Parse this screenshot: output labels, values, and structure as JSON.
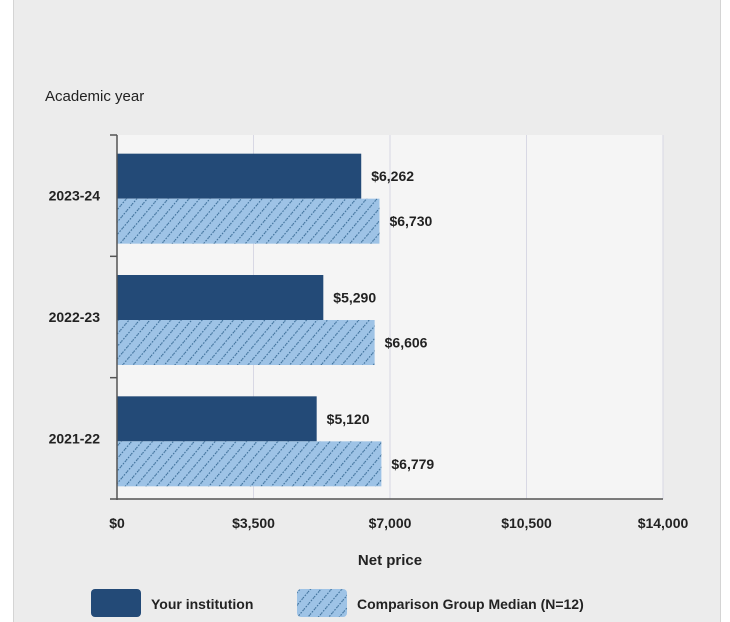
{
  "chart_data": {
    "type": "bar",
    "orientation": "horizontal",
    "title": "",
    "ylabel": "Academic year",
    "xlabel": "Net price",
    "categories": [
      "2023-24",
      "2022-23",
      "2021-22"
    ],
    "series": [
      {
        "name": "Your institution",
        "values": [
          6262,
          5290,
          5120
        ],
        "labels": [
          "$6,262",
          "$5,290",
          "$5,120"
        ],
        "color": "#234a77",
        "pattern": "solid"
      },
      {
        "name": "Comparison Group Median (N=12)",
        "values": [
          6730,
          6606,
          6779
        ],
        "labels": [
          "$6,730",
          "$6,606",
          "$6,779"
        ],
        "color": "#9ec3e6",
        "pattern": "hatched"
      }
    ],
    "xlim": [
      0,
      14000
    ],
    "x_ticks": [
      0,
      3500,
      7000,
      10500,
      14000
    ],
    "x_tick_labels": [
      "$0",
      "$3,500",
      "$7,000",
      "$10,500",
      "$14,000"
    ],
    "grid": true,
    "legend_position": "bottom"
  }
}
